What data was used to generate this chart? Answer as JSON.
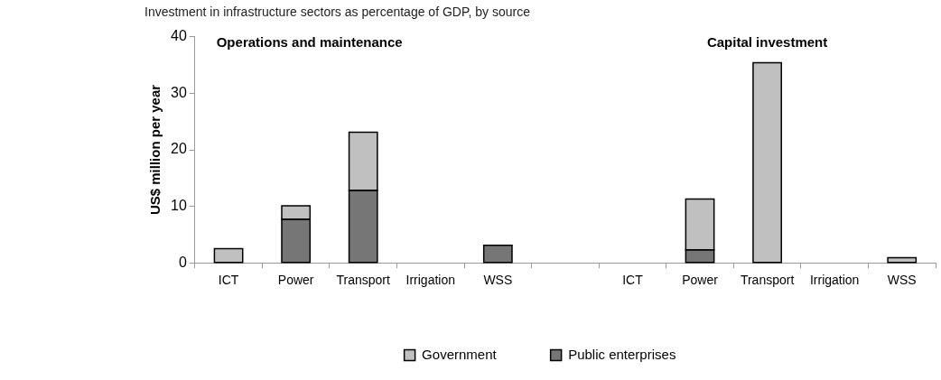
{
  "chart_data": {
    "type": "bar",
    "title": "Investment in infrastructure sectors as percentage of GDP, by source",
    "ylabel": "US$ million per year",
    "annotations": [
      "Operations and maintenance",
      "Capital investment"
    ],
    "categories": [
      "ICT",
      "Power",
      "Transport",
      "Irrigation",
      "WSS",
      null,
      "ICT",
      "Power",
      "Transport",
      "Irrigation",
      "WSS"
    ],
    "stacked": true,
    "series": [
      {
        "name": "Public enterprises",
        "color": "#767676",
        "values": [
          0,
          7.7,
          12.8,
          0,
          3.1,
          null,
          0,
          2.3,
          0,
          0,
          0
        ]
      },
      {
        "name": "Government",
        "color": "#c0c0c0",
        "values": [
          2.5,
          2.4,
          10.3,
          0,
          0,
          null,
          null,
          9,
          35.4,
          0,
          0.9
        ]
      }
    ],
    "ylim": [
      0,
      40
    ],
    "yticks": [
      0,
      10,
      20,
      30,
      40
    ],
    "grid": false,
    "legend": "bottom"
  }
}
